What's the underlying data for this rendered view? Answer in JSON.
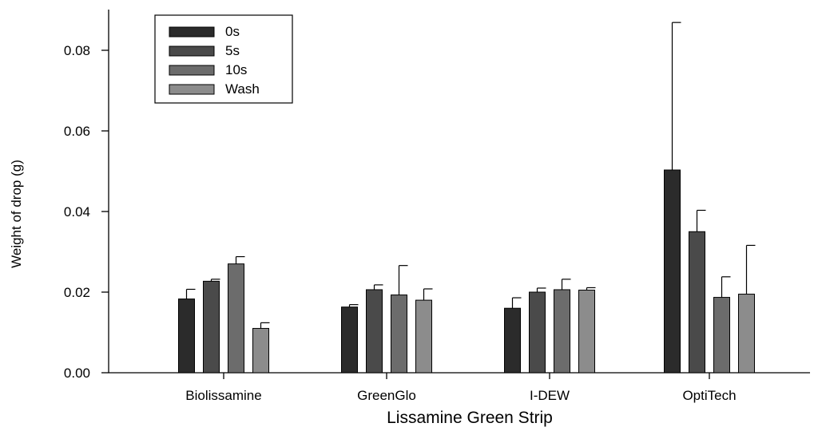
{
  "chart_data": {
    "type": "bar",
    "xlabel": "Lissamine Green Strip",
    "ylabel": "Weight of drop (g)",
    "ylim": [
      0,
      0.09
    ],
    "yticks": [
      "0.00",
      "0.02",
      "0.04",
      "0.06",
      "0.08"
    ],
    "ytick_values": [
      0,
      0.02,
      0.04,
      0.06,
      0.08
    ],
    "categories": [
      "Biolissamine",
      "GreenGlo",
      "I-DEW",
      "OptiTech"
    ],
    "series": [
      {
        "name": "0s",
        "color": "#2b2b2b",
        "values": [
          0.0183,
          0.0163,
          0.016,
          0.0503
        ],
        "errors": [
          0.0024,
          0.0006,
          0.0026,
          0.0366
        ]
      },
      {
        "name": "5s",
        "color": "#4a4a4a",
        "values": [
          0.0227,
          0.0206,
          0.02,
          0.035
        ],
        "errors": [
          0.0005,
          0.0012,
          0.001,
          0.0053
        ]
      },
      {
        "name": "10s",
        "color": "#6c6c6c",
        "values": [
          0.027,
          0.0193,
          0.0206,
          0.0187
        ],
        "errors": [
          0.0018,
          0.0073,
          0.0026,
          0.0051
        ]
      },
      {
        "name": "Wash",
        "color": "#8c8c8c",
        "values": [
          0.011,
          0.018,
          0.0205,
          0.0195
        ],
        "errors": [
          0.0014,
          0.0028,
          0.0006,
          0.0121
        ]
      }
    ],
    "legend_position": "top-left",
    "grid": false
  }
}
